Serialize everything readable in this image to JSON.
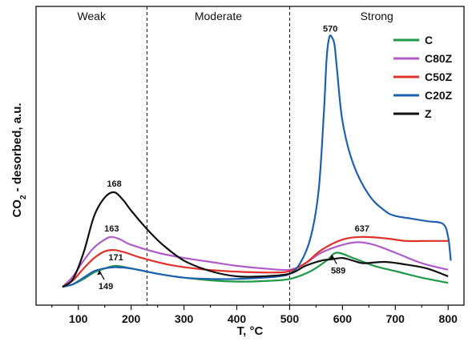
{
  "chart_data": {
    "type": "line",
    "xlabel": "T, °C",
    "ylabel_main": "CO",
    "ylabel_sub": "2",
    "ylabel_rest": " - desorbed, a.u.",
    "xlim": [
      20,
      830
    ],
    "ylim": [
      0,
      100
    ],
    "x_ticks": [
      100,
      200,
      300,
      400,
      500,
      600,
      700,
      800
    ],
    "y_ticks_labeled": false,
    "grid": false,
    "legend_position": "top-right",
    "regions": [
      {
        "label": "Weak",
        "x_from": 20,
        "x_to": 230
      },
      {
        "label": "Moderate",
        "x_from": 230,
        "x_to": 500
      },
      {
        "label": "Strong",
        "x_from": 500,
        "x_to": 830
      }
    ],
    "dividers": [
      230,
      500
    ],
    "series": [
      {
        "name": "C",
        "color": "#1e9a48",
        "points": [
          [
            70,
            3
          ],
          [
            90,
            4
          ],
          [
            110,
            6
          ],
          [
            130,
            8.5
          ],
          [
            150,
            10
          ],
          [
            171,
            11
          ],
          [
            200,
            10
          ],
          [
            250,
            8
          ],
          [
            300,
            6.5
          ],
          [
            350,
            5.5
          ],
          [
            400,
            5
          ],
          [
            450,
            5.2
          ],
          [
            500,
            6
          ],
          [
            540,
            9
          ],
          [
            570,
            13
          ],
          [
            589,
            16
          ],
          [
            620,
            14
          ],
          [
            660,
            11
          ],
          [
            700,
            9
          ],
          [
            750,
            6.5
          ],
          [
            800,
            4.5
          ]
        ]
      },
      {
        "name": "C80Z",
        "color": "#b05cc8",
        "points": [
          [
            70,
            3
          ],
          [
            90,
            7
          ],
          [
            110,
            13
          ],
          [
            130,
            18
          ],
          [
            150,
            21
          ],
          [
            163,
            22
          ],
          [
            180,
            21
          ],
          [
            200,
            19
          ],
          [
            250,
            16
          ],
          [
            300,
            14
          ],
          [
            350,
            12.5
          ],
          [
            400,
            11
          ],
          [
            450,
            10
          ],
          [
            500,
            9.5
          ],
          [
            530,
            12
          ],
          [
            560,
            16
          ],
          [
            600,
            19
          ],
          [
            630,
            20
          ],
          [
            660,
            19
          ],
          [
            700,
            16
          ],
          [
            750,
            12
          ],
          [
            800,
            9.5
          ]
        ]
      },
      {
        "name": "C50Z",
        "color": "#e0302a",
        "points": [
          [
            70,
            3
          ],
          [
            90,
            5.5
          ],
          [
            110,
            10
          ],
          [
            130,
            14
          ],
          [
            150,
            16.5
          ],
          [
            168,
            17
          ],
          [
            190,
            16
          ],
          [
            220,
            14
          ],
          [
            270,
            11.5
          ],
          [
            320,
            10
          ],
          [
            380,
            9
          ],
          [
            440,
            8.5
          ],
          [
            480,
            8.5
          ],
          [
            500,
            9
          ],
          [
            530,
            12
          ],
          [
            560,
            17
          ],
          [
            600,
            21
          ],
          [
            637,
            22
          ],
          [
            680,
            21.5
          ],
          [
            720,
            20.5
          ],
          [
            760,
            20.5
          ],
          [
            800,
            20.5
          ]
        ]
      },
      {
        "name": "C20Z",
        "color": "#2060b0",
        "points": [
          [
            70,
            3
          ],
          [
            90,
            4
          ],
          [
            110,
            6.5
          ],
          [
            130,
            9
          ],
          [
            149,
            10
          ],
          [
            170,
            10.5
          ],
          [
            200,
            10
          ],
          [
            250,
            8
          ],
          [
            300,
            6.5
          ],
          [
            350,
            6
          ],
          [
            400,
            6
          ],
          [
            450,
            6.5
          ],
          [
            480,
            7
          ],
          [
            500,
            8
          ],
          [
            520,
            12
          ],
          [
            540,
            22
          ],
          [
            555,
            40
          ],
          [
            565,
            70
          ],
          [
            570,
            90
          ],
          [
            575,
            98
          ],
          [
            580,
            98
          ],
          [
            585,
            95
          ],
          [
            590,
            85
          ],
          [
            600,
            66
          ],
          [
            620,
            50
          ],
          [
            650,
            38
          ],
          [
            680,
            32
          ],
          [
            700,
            30
          ],
          [
            730,
            29
          ],
          [
            760,
            28
          ],
          [
            790,
            27
          ],
          [
            800,
            22
          ],
          [
            805,
            13
          ]
        ]
      },
      {
        "name": "Z",
        "color": "#111111",
        "points": [
          [
            70,
            3
          ],
          [
            90,
            6
          ],
          [
            110,
            16
          ],
          [
            130,
            30
          ],
          [
            150,
            37
          ],
          [
            168,
            39
          ],
          [
            185,
            36
          ],
          [
            200,
            32
          ],
          [
            230,
            25
          ],
          [
            260,
            19
          ],
          [
            300,
            13
          ],
          [
            350,
            9
          ],
          [
            400,
            7
          ],
          [
            450,
            7
          ],
          [
            500,
            8
          ],
          [
            530,
            11
          ],
          [
            560,
            13
          ],
          [
            580,
            13.5
          ],
          [
            600,
            14
          ],
          [
            620,
            13
          ],
          [
            640,
            12
          ],
          [
            680,
            12.5
          ],
          [
            720,
            11.5
          ],
          [
            760,
            10
          ],
          [
            800,
            7
          ]
        ]
      }
    ],
    "annotations": [
      {
        "text": "570",
        "x": 577,
        "y": 98,
        "pos": "above"
      },
      {
        "text": "168",
        "x": 168,
        "y": 39,
        "pos": "above"
      },
      {
        "text": "163",
        "x": 163,
        "y": 22,
        "pos": "above"
      },
      {
        "text": "171",
        "x": 171,
        "y": 11,
        "pos": "above"
      },
      {
        "text": "637",
        "x": 637,
        "y": 22,
        "pos": "above"
      },
      {
        "text": "149",
        "x": 149,
        "y": 10,
        "pos": "below",
        "arrow": true
      },
      {
        "text": "589",
        "x": 589,
        "y": 16,
        "pos": "below",
        "arrow": true
      }
    ]
  }
}
